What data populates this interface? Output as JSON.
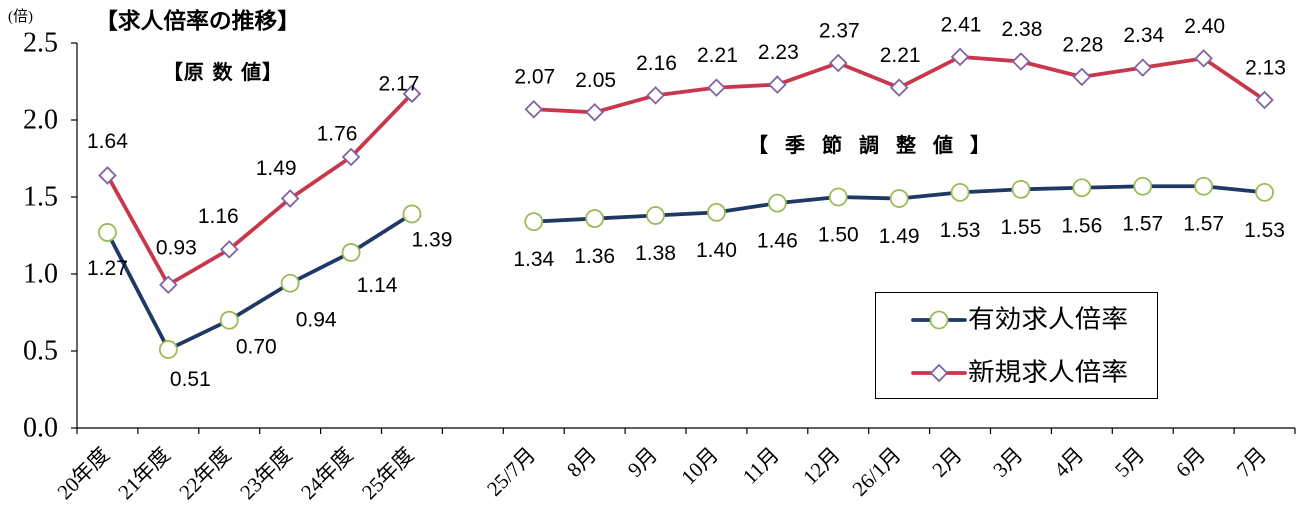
{
  "chart_data": {
    "type": "line",
    "title": "【求人倍率の推移】",
    "ylabel": "(倍)",
    "ylim": [
      0,
      2.5
    ],
    "yticks": [
      0,
      0.5,
      1.0,
      1.5,
      2.0,
      2.5
    ],
    "grid": false,
    "legend": "lower-right",
    "annotations": [
      "【原 数 値】",
      "【 季 節 調 整 値 】"
    ],
    "categories": [
      "20年度",
      "21年度",
      "22年度",
      "23年度",
      "24年度",
      "25年度",
      null,
      "25/7月",
      "8月",
      "9月",
      "10月",
      "11月",
      "12月",
      "26/1月",
      "2月",
      "3月",
      "4月",
      "5月",
      "6月",
      "7月"
    ],
    "series": [
      {
        "name": "有効求人倍率",
        "color": "#1F3864",
        "marker": "circle",
        "marker_color": "#9BBB59",
        "values": [
          1.27,
          0.51,
          0.7,
          0.94,
          1.14,
          1.39,
          null,
          1.34,
          1.36,
          1.38,
          1.4,
          1.46,
          1.5,
          1.49,
          1.53,
          1.55,
          1.56,
          1.57,
          1.57,
          1.53
        ]
      },
      {
        "name": "新規求人倍率",
        "color": "#C8374B",
        "marker": "diamond",
        "marker_color": "#8064A2",
        "values": [
          1.64,
          0.93,
          1.16,
          1.49,
          1.76,
          2.17,
          null,
          2.07,
          2.05,
          2.16,
          2.21,
          2.23,
          2.37,
          2.21,
          2.41,
          2.38,
          2.28,
          2.34,
          2.4,
          2.13
        ]
      }
    ]
  }
}
